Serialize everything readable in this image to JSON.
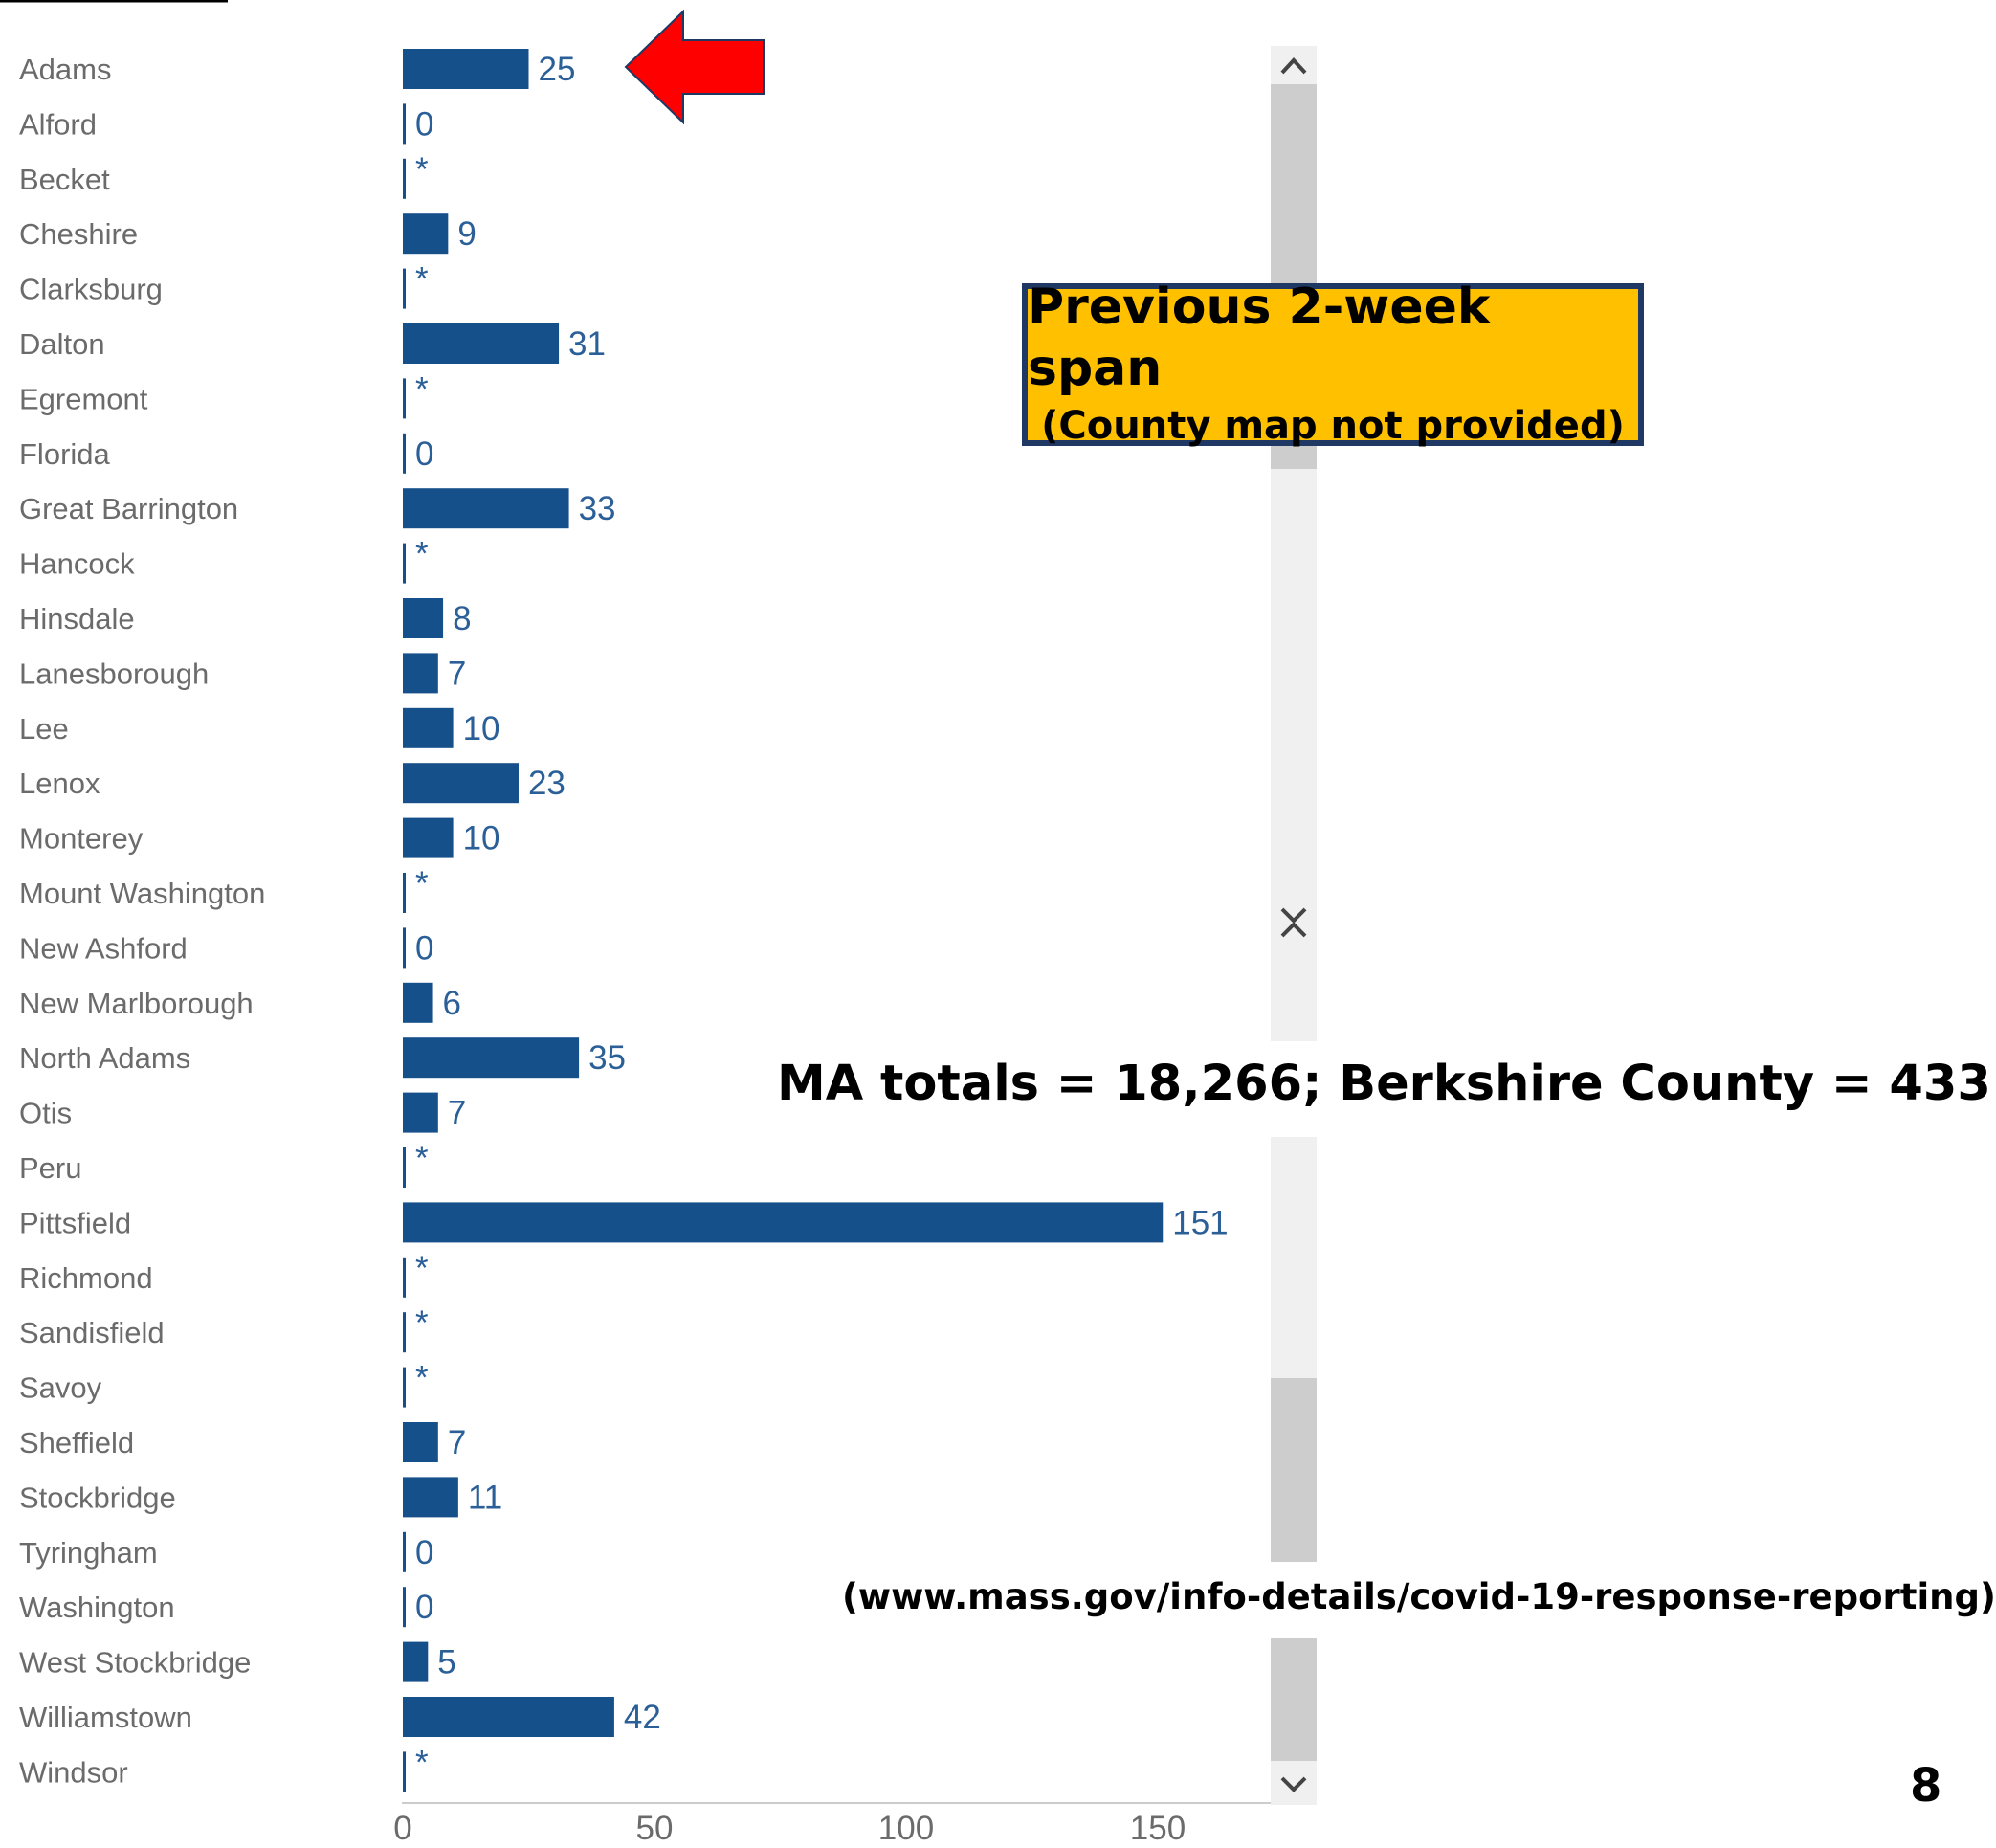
{
  "chart_data": {
    "type": "bar",
    "orientation": "horizontal",
    "categories": [
      "Adams",
      "Alford",
      "Becket",
      "Cheshire",
      "Clarksburg",
      "Dalton",
      "Egremont",
      "Florida",
      "Great Barrington",
      "Hancock",
      "Hinsdale",
      "Lanesborough",
      "Lee",
      "Lenox",
      "Monterey",
      "Mount Washington",
      "New Ashford",
      "New Marlborough",
      "North Adams",
      "Otis",
      "Peru",
      "Pittsfield",
      "Richmond",
      "Sandisfield",
      "Savoy",
      "Sheffield",
      "Stockbridge",
      "Tyringham",
      "Washington",
      "West Stockbridge",
      "Williamstown",
      "Windsor"
    ],
    "values": [
      25,
      0,
      null,
      9,
      null,
      31,
      null,
      0,
      33,
      null,
      8,
      7,
      10,
      23,
      10,
      null,
      0,
      6,
      35,
      7,
      null,
      151,
      null,
      null,
      null,
      7,
      11,
      0,
      0,
      5,
      42,
      null
    ],
    "value_labels": [
      "25",
      "0",
      "*",
      "9",
      "*",
      "31",
      "*",
      "0",
      "33",
      "*",
      "8",
      "7",
      "10",
      "23",
      "10",
      "*",
      "0",
      "6",
      "35",
      "7",
      "*",
      "151",
      "*",
      "*",
      "*",
      "7",
      "11",
      "0",
      "0",
      "5",
      "42",
      "*"
    ],
    "xticks": [
      "0",
      "50",
      "100",
      "150"
    ],
    "xlim": [
      0,
      175
    ],
    "colors": {
      "bar": "#16508a",
      "value_label": "#2b5f97",
      "category_label": "#6b6b6b"
    },
    "grid": false,
    "legend": "none"
  },
  "annotations": {
    "callout": {
      "line1": "Previous 2-week span",
      "line2": "(County map not provided)",
      "background": "#ffc000",
      "border": "#1f3864"
    },
    "arrow_color": "#ff0000",
    "totals": "MA totals = 18,266; Berkshire County = 433",
    "source": "(www.mass.gov/info-details/covid-19-response-reporting)",
    "page_number": "8"
  },
  "scrollbar": {
    "up_icon": "chevron-up-icon",
    "down_icon": "chevron-down-icon",
    "track_color": "#f0f0f0",
    "thumb_color": "#cdcdcd"
  }
}
